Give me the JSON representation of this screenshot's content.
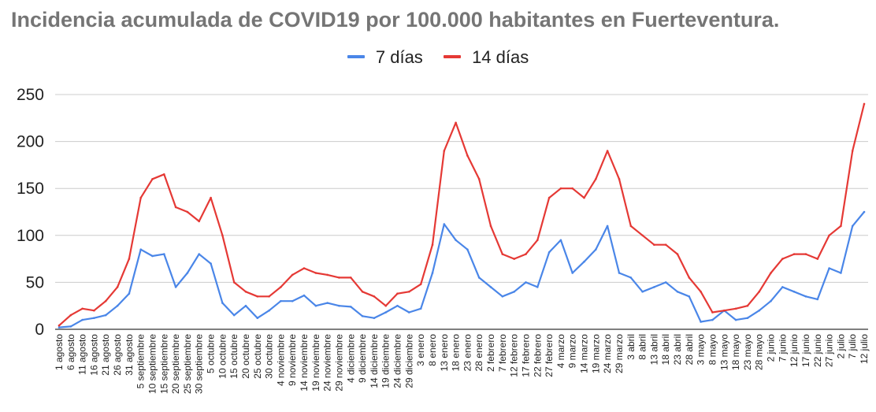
{
  "chart_data": {
    "type": "line",
    "title": "Incidencia acumulada de COVID19 por 100.000 habitantes en Fuerteventura.",
    "xlabel": "",
    "ylabel": "",
    "ylim": [
      0,
      250
    ],
    "yticks": [
      "0",
      "50",
      "100",
      "150",
      "200",
      "250"
    ],
    "legend_position": "top",
    "grid": "horizontal",
    "categories": [
      "1 agosto",
      "6 agosto",
      "11 agosto",
      "16 agosto",
      "21 agosto",
      "26 agosto",
      "31 agosto",
      "5 septiembre",
      "10 septiembre",
      "15 septiembre",
      "20 septiembre",
      "25 septiembre",
      "30 septiembre",
      "5 octubre",
      "10 octubre",
      "15 octubre",
      "20 octubre",
      "25 octubre",
      "30 octubre",
      "4 noviembre",
      "9 noviembre",
      "14 noviembre",
      "19 noviembre",
      "24 noviembre",
      "29 noviembre",
      "4 diciembre",
      "9 diciembre",
      "14 diciembre",
      "19 diciembre",
      "24 diciembre",
      "29 diciembre",
      "3 enero",
      "8 enero",
      "13 enero",
      "18 enero",
      "23 enero",
      "28 enero",
      "2 febrero",
      "7 febrero",
      "12 febrero",
      "17 febrero",
      "22 febrero",
      "27 febrero",
      "4 marzo",
      "9 marzo",
      "14 marzo",
      "19 marzo",
      "24 marzo",
      "29 marzo",
      "3 abril",
      "8 abril",
      "13 abril",
      "18 abril",
      "23 abril",
      "28 abril",
      "3 mayo",
      "8 mayo",
      "13 mayo",
      "18 mayo",
      "23 mayo",
      "28 mayo",
      "2 junio",
      "7 junio",
      "12 junio",
      "17 junio",
      "22 junio",
      "27 junio",
      "2 julio",
      "7 julio",
      "12 julio"
    ],
    "series": [
      {
        "name": "7 días",
        "color": "#4a86e8",
        "values": [
          2,
          3,
          10,
          12,
          15,
          25,
          38,
          85,
          78,
          80,
          45,
          60,
          80,
          70,
          28,
          15,
          25,
          12,
          20,
          30,
          30,
          36,
          25,
          28,
          25,
          24,
          14,
          12,
          18,
          25,
          18,
          22,
          60,
          112,
          95,
          85,
          55,
          45,
          35,
          40,
          50,
          45,
          82,
          95,
          60,
          72,
          85,
          110,
          60,
          55,
          40,
          45,
          50,
          40,
          35,
          8,
          10,
          20,
          10,
          12,
          20,
          30,
          45,
          40,
          35,
          32,
          65,
          60,
          110,
          125
        ]
      },
      {
        "name": "14 días",
        "color": "#e53935",
        "values": [
          4,
          15,
          22,
          20,
          30,
          45,
          75,
          140,
          160,
          165,
          130,
          125,
          115,
          140,
          100,
          50,
          40,
          35,
          35,
          45,
          58,
          65,
          60,
          58,
          55,
          55,
          40,
          35,
          25,
          38,
          40,
          48,
          90,
          190,
          220,
          185,
          160,
          110,
          80,
          75,
          80,
          95,
          140,
          150,
          150,
          140,
          160,
          190,
          160,
          110,
          100,
          90,
          90,
          80,
          55,
          40,
          18,
          20,
          22,
          25,
          40,
          60,
          75,
          80,
          80,
          75,
          100,
          110,
          190,
          240
        ]
      }
    ]
  }
}
